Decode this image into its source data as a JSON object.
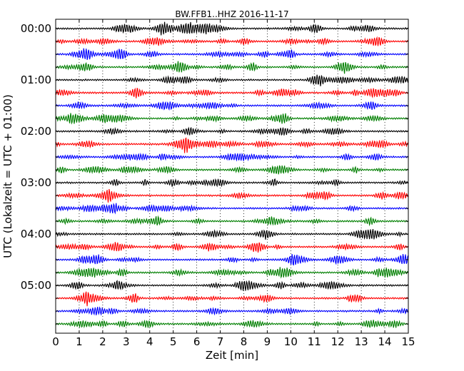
{
  "chart_data": {
    "type": "line",
    "chart_kind": "seismogram-dayplot",
    "title": "BW.FFB1..HHZ 2016-11-17",
    "xlabel": "Zeit  [min]",
    "ylabel": "UTC (Lokalzeit = UTC + 01:00)",
    "xlim": [
      0,
      15
    ],
    "x_ticks": [
      "0",
      "1",
      "2",
      "3",
      "4",
      "5",
      "6",
      "7",
      "8",
      "9",
      "10",
      "11",
      "12",
      "13",
      "14",
      "15"
    ],
    "y_tick_labels": [
      "00:00",
      "01:00",
      "02:00",
      "03:00",
      "04:00",
      "05:00"
    ],
    "trace_interval_minutes": 15,
    "trace_count": 24,
    "trace_colors": [
      "#000000",
      "#ff0000",
      "#0000ff",
      "#007f00"
    ],
    "grid": "vertical-dotted"
  }
}
